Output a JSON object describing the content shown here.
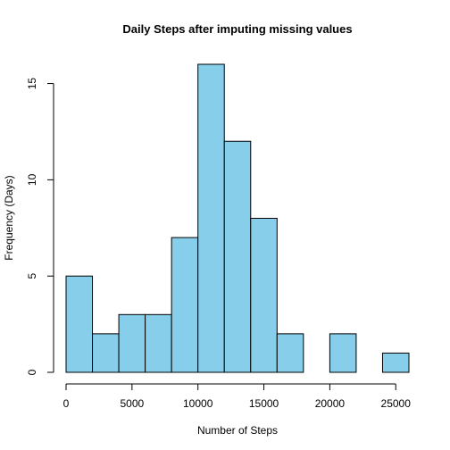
{
  "chart_data": {
    "type": "bar",
    "title": "Daily Steps after imputing missing values",
    "xlabel": "Number of Steps",
    "ylabel": "Frequency (Days)",
    "bin_edges": [
      0,
      2000,
      4000,
      6000,
      8000,
      10000,
      12000,
      14000,
      16000,
      18000,
      20000,
      22000,
      24000,
      26000
    ],
    "values": [
      5,
      2,
      3,
      3,
      7,
      16,
      12,
      8,
      2,
      0,
      2,
      0,
      1
    ],
    "xlim": [
      0,
      26000
    ],
    "ylim": [
      0,
      16
    ],
    "x_ticks": [
      0,
      5000,
      10000,
      15000,
      20000,
      25000
    ],
    "x_tick_labels": [
      "0",
      "5000",
      "10000",
      "15000",
      "20000",
      "25000"
    ],
    "y_ticks": [
      0,
      5,
      10,
      15
    ],
    "y_tick_labels": [
      "0",
      "5",
      "10",
      "15"
    ],
    "bar_color": "#87CEEB",
    "grid": false
  }
}
